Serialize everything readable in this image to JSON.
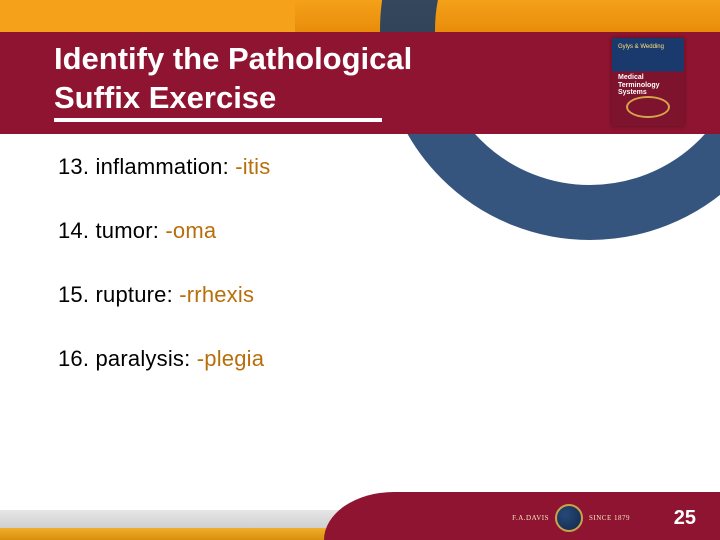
{
  "colors": {
    "brand_red": "#8e1431",
    "brand_orange": "#f5a11a",
    "answer_color": "#b86f0b",
    "text_color": "#000000",
    "title_color": "#ffffff"
  },
  "typography": {
    "title_fontsize_pt": 24,
    "body_fontsize_pt": 17,
    "title_weight": "bold",
    "body_font": "Verdana",
    "title_font": "Arial"
  },
  "header": {
    "title_line1": "Identify the Pathological",
    "title_line2": "Suffix Exercise",
    "book_label_small": "Gylys & Wedding",
    "book_label_main": "Medical Terminology Systems"
  },
  "items": [
    {
      "num": "13.",
      "term": "inflammation:",
      "answer": "-itis"
    },
    {
      "num": "14.",
      "term": "tumor:",
      "answer": "-oma"
    },
    {
      "num": "15.",
      "term": "rupture:",
      "answer": "-rrhexis"
    },
    {
      "num": "16.",
      "term": "paralysis:",
      "answer": "-plegia"
    }
  ],
  "footer": {
    "publisher_left": "F.A.DAVIS",
    "publisher_right": "SINCE 1879",
    "page_number": "25"
  }
}
